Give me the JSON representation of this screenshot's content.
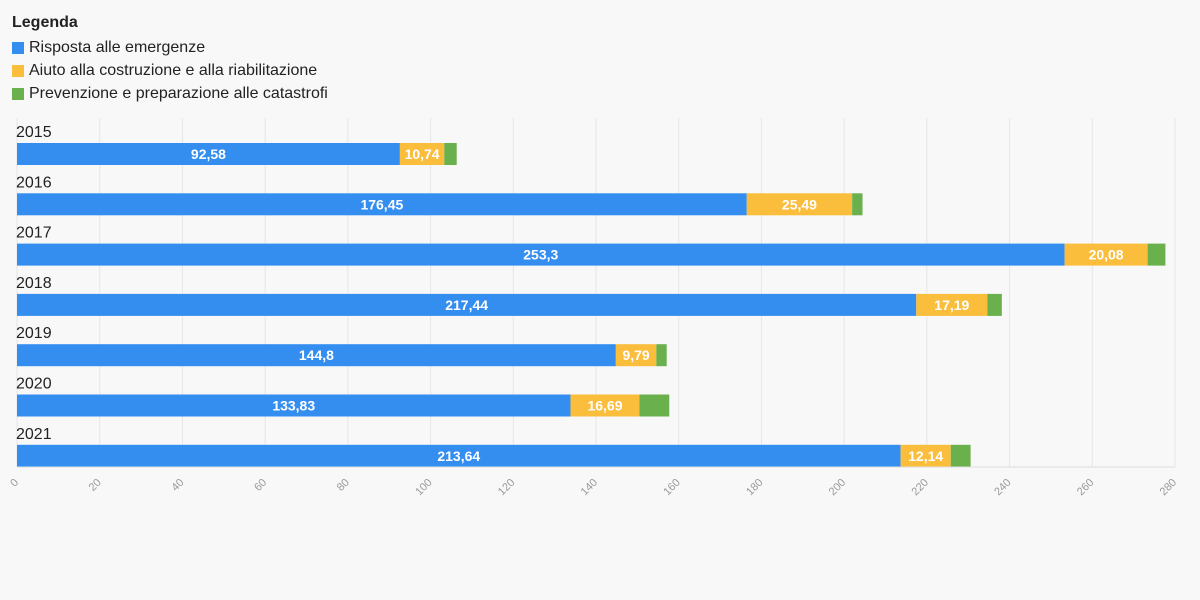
{
  "legend": {
    "title": "Legenda",
    "items": [
      {
        "label": "Risposta alle emergenze",
        "color": "#338ef0"
      },
      {
        "label": "Aiuto alla costruzione e alla riabilitazione",
        "color": "#fbbd3c"
      },
      {
        "label": "Prevenzione e preparazione alle catastrofi",
        "color": "#6ab04c"
      }
    ]
  },
  "chart_data": {
    "type": "bar",
    "orientation": "horizontal",
    "stacked": true,
    "categories": [
      "2015",
      "2016",
      "2017",
      "2018",
      "2019",
      "2020",
      "2021"
    ],
    "series": [
      {
        "name": "Risposta alle emergenze",
        "color": "#338ef0",
        "values": [
          92.58,
          176.45,
          253.3,
          217.44,
          144.8,
          133.83,
          213.64
        ],
        "labels": [
          "92,58",
          "176,45",
          "253,3",
          "217,44",
          "144,8",
          "133,83",
          "213,64"
        ]
      },
      {
        "name": "Aiuto alla costruzione e alla riabilitazione",
        "color": "#fbbd3c",
        "values": [
          10.74,
          25.49,
          20.08,
          17.19,
          9.79,
          16.69,
          12.14
        ],
        "labels": [
          "10,74",
          "25,49",
          "20,08",
          "17,19",
          "9,79",
          "16,69",
          "12,14"
        ]
      },
      {
        "name": "Prevenzione e preparazione alle catastrofi",
        "color": "#6ab04c",
        "values": [
          3.0,
          2.5,
          4.3,
          3.5,
          2.5,
          7.2,
          4.8
        ],
        "labels": []
      }
    ],
    "xlim": [
      0,
      280
    ],
    "xticks": [
      "0",
      "20",
      "40",
      "60",
      "80",
      "100",
      "120",
      "140",
      "160",
      "180",
      "200",
      "220",
      "240",
      "260",
      "280"
    ],
    "grid": true,
    "legend_position": "top-left"
  }
}
